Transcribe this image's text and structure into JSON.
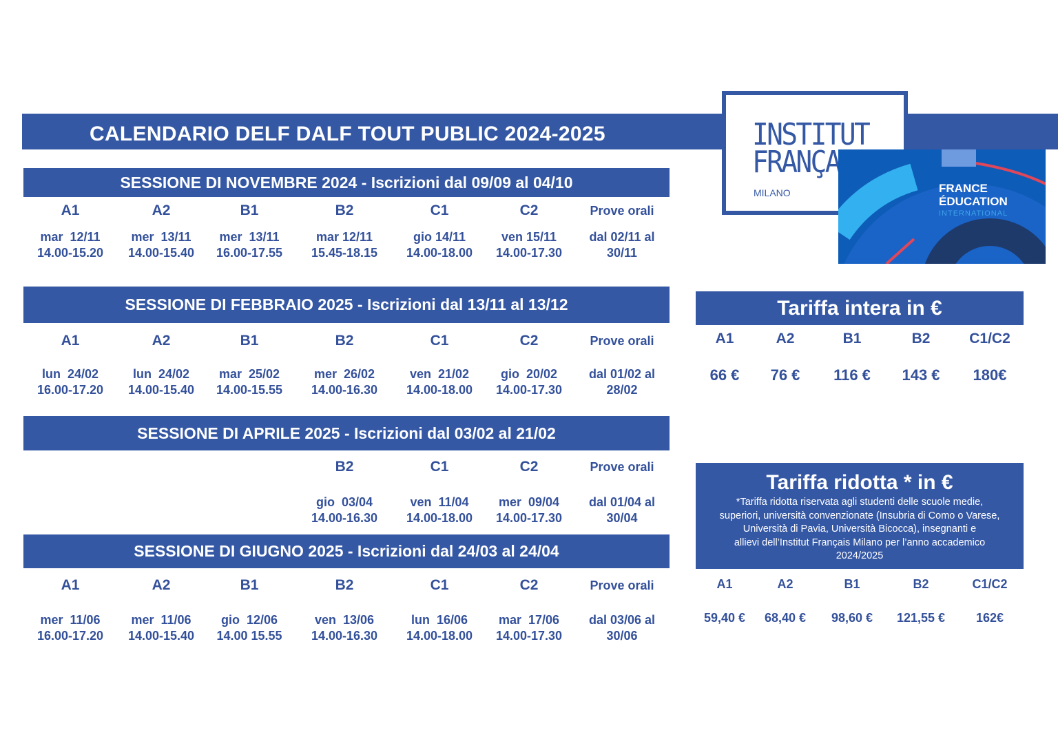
{
  "title": "CALENDARIO DELF DALF TOUT PUBLIC 2024-2025",
  "logo": {
    "line1": "INSTITUT",
    "line2": "FRANÇAIS",
    "city": "MILANO",
    "partner_line1": "FRANCE",
    "partner_line2": "ÉDUCATION",
    "partner_line3": "INTERNATIONAL"
  },
  "colors": {
    "primary": "#3558a5",
    "text": "#33509a",
    "accent_red": "#e0475a"
  },
  "sessions": [
    {
      "header": "SESSIONE DI NOVEMBRE 2024 - Iscrizioni dal 09/09  al 04/10",
      "columns": [
        {
          "level": "A1",
          "day": "mar  12/11",
          "time": "14.00-15.20"
        },
        {
          "level": "A2",
          "day": "mer  13/11",
          "time": "14.00-15.40"
        },
        {
          "level": "B1",
          "day": "mer  13/11",
          "time": "16.00-17.55"
        },
        {
          "level": "B2",
          "day": "mar 12/11",
          "time": "15.45-18.15"
        },
        {
          "level": "C1",
          "day": "gio 14/11",
          "time": "14.00-18.00"
        },
        {
          "level": "C2",
          "day": "ven 15/11",
          "time": "14.00-17.30"
        },
        {
          "level": "Prove orali",
          "day": "dal 02/11 al",
          "time": "30/11"
        }
      ]
    },
    {
      "header": "SESSIONE DI FEBBRAIO 2025 - Iscrizioni dal 13/11 al 13/12",
      "columns": [
        {
          "level": "A1",
          "day": "lun  24/02",
          "time": "16.00-17.20"
        },
        {
          "level": "A2",
          "day": "lun  24/02",
          "time": "14.00-15.40"
        },
        {
          "level": "B1",
          "day": "mar  25/02",
          "time": "14.00-15.55"
        },
        {
          "level": "B2",
          "day": "mer  26/02",
          "time": "14.00-16.30"
        },
        {
          "level": "C1",
          "day": "ven  21/02",
          "time": "14.00-18.00"
        },
        {
          "level": "C2",
          "day": "gio  20/02",
          "time": "14.00-17.30"
        },
        {
          "level": "Prove orali",
          "day": "dal 01/02 al",
          "time": "28/02"
        }
      ]
    },
    {
      "header": "SESSIONE DI APRILE 2025 - Iscrizioni dal 03/02 al 21/02",
      "columns": [
        null,
        null,
        null,
        {
          "level": "B2",
          "day": "gio  03/04",
          "time": "14.00-16.30"
        },
        {
          "level": "C1",
          "day": "ven  11/04",
          "time": "14.00-18.00"
        },
        {
          "level": "C2",
          "day": "mer  09/04",
          "time": "14.00-17.30"
        },
        {
          "level": "Prove orali",
          "day": "dal 01/04 al",
          "time": "30/04"
        }
      ]
    },
    {
      "header": "SESSIONE DI GIUGNO 2025 - Iscrizioni dal 24/03 al 24/04",
      "columns": [
        {
          "level": "A1",
          "day": "mer  11/06",
          "time": "16.00-17.20"
        },
        {
          "level": "A2",
          "day": "mer  11/06",
          "time": "14.00-15.40"
        },
        {
          "level": "B1",
          "day": "gio  12/06",
          "time": "14.00 15.55"
        },
        {
          "level": "B2",
          "day": "ven  13/06",
          "time": "14.00-16.30"
        },
        {
          "level": "C1",
          "day": "lun  16/06",
          "time": "14.00-18.00"
        },
        {
          "level": "C2",
          "day": "mar  17/06",
          "time": "14.00-17.30"
        },
        {
          "level": "Prove orali",
          "day": "dal 03/06 al",
          "time": "30/06"
        }
      ]
    }
  ],
  "tariffa_intera": {
    "header": "Tariffa intera in €",
    "levels": [
      "A1",
      "A2",
      "B1",
      "B2",
      "C1/C2"
    ],
    "prices": [
      "66 €",
      "76 €",
      "116 €",
      "143 €",
      "180€"
    ]
  },
  "tariffa_ridotta": {
    "header": "Tariffa ridotta * in €",
    "note_lines": [
      "*Tariffa ridotta riservata agli studenti delle scuole medie,",
      "superiori, università convenzionate (Insubria di Como o Varese,",
      "Università di Pavia, Università Bicocca), insegnanti e",
      "allievi dell’Institut Français Milano per l’anno accademico",
      "2024/2025"
    ],
    "levels": [
      "A1",
      "A2",
      "B1",
      "B2",
      "C1/C2"
    ],
    "prices": [
      "59,40 €",
      "68,40 €",
      "98,60 €",
      "121,55 €",
      "162€"
    ]
  }
}
